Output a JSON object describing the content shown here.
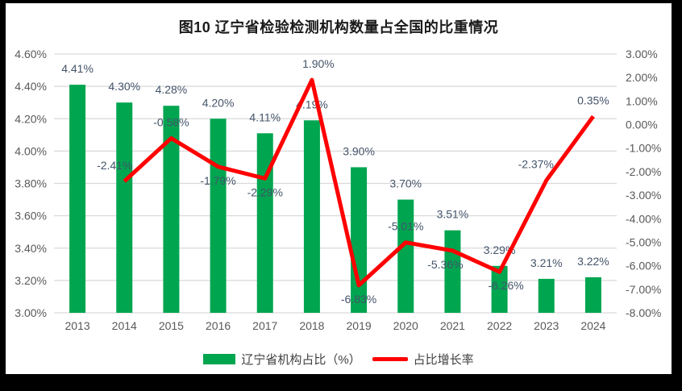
{
  "window": {
    "title": "图10 辽宁省检验检测机构数量占全国的比重情况"
  },
  "chart_data": {
    "type": "combo (bar + line, dual axis)",
    "title": "图10 辽宁省检验检测机构数量占全国的比重情况",
    "categories": [
      "2013",
      "2014",
      "2015",
      "2016",
      "2017",
      "2018",
      "2019",
      "2020",
      "2021",
      "2022",
      "2023",
      "2024"
    ],
    "series": [
      {
        "name": "辽宁省机构占比（%）",
        "kind": "bar",
        "axis": "left",
        "color": "#00A550",
        "values": [
          4.41,
          4.3,
          4.28,
          4.2,
          4.11,
          4.19,
          3.9,
          3.7,
          3.51,
          3.29,
          3.21,
          3.22
        ],
        "labels": [
          "4.41%",
          "4.30%",
          "4.28%",
          "4.20%",
          "4.11%",
          "4.19%",
          "3.90%",
          "3.70%",
          "3.51%",
          "3.29%",
          "3.21%",
          "3.22%"
        ]
      },
      {
        "name": "占比增长率",
        "kind": "line",
        "axis": "right",
        "color": "#FF0000",
        "values": [
          null,
          -2.41,
          -0.58,
          -1.79,
          -2.29,
          1.9,
          -6.83,
          -5.01,
          -5.36,
          -6.26,
          -2.37,
          0.35
        ],
        "labels": [
          null,
          "-2.41%",
          "-0.58%",
          "-1.79%",
          "-2.29%",
          "1.90%",
          "-6.83%",
          "-5.01%",
          "-5.36%",
          "-6.26%",
          "-2.37%",
          "0.35%"
        ],
        "label_side": [
          null,
          "above",
          "above",
          "below",
          "below",
          "above",
          "below",
          "above",
          "below",
          "below",
          "above",
          "above"
        ],
        "label_dx": [
          0,
          -12,
          0,
          0,
          0,
          8,
          0,
          0,
          -9,
          8,
          -13,
          0
        ]
      }
    ],
    "left_axis": {
      "min": 3.0,
      "max": 4.6,
      "step": 0.2,
      "tick_labels": [
        "4.60%",
        "4.40%",
        "4.20%",
        "4.00%",
        "3.80%",
        "3.60%",
        "3.40%",
        "3.20%",
        "3.00%"
      ]
    },
    "right_axis": {
      "min": -8.0,
      "max": 3.0,
      "step": 1.0,
      "tick_labels": [
        "3.00%",
        "2.00%",
        "1.00%",
        "0.00%",
        "-1.00%",
        "-2.00%",
        "-3.00%",
        "-4.00%",
        "-5.00%",
        "-6.00%",
        "-7.00%",
        "-8.00%"
      ]
    },
    "legend": {
      "position": "bottom",
      "items": [
        {
          "label": "辽宁省机构占比（%）",
          "swatch": "bar",
          "color": "#00A550"
        },
        {
          "label": "占比增长率",
          "swatch": "line",
          "color": "#FF0000"
        }
      ]
    },
    "grid": {
      "horizontal": true,
      "vertical": false,
      "color": "#D9D9D9"
    },
    "colors": {
      "axis_text": "#595959",
      "data_label_text": "#44546A",
      "background": "#FFFFFF",
      "frame": "#000000"
    }
  }
}
